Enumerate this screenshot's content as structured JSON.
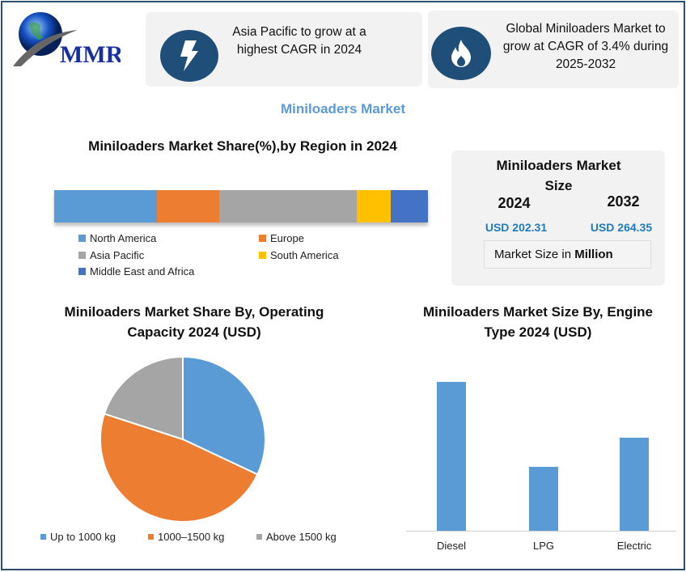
{
  "logo": {
    "text": "MMR"
  },
  "highlights": [
    {
      "icon": "lightning-icon",
      "text": "Asia Pacific to grow at a highest CAGR in 2024"
    },
    {
      "icon": "flame-icon",
      "text": "Global Miniloaders Market to grow at CAGR of 3.4% during 2025-2032"
    }
  ],
  "title": "Miniloaders Market",
  "size_box": {
    "title": "Miniloaders Market Size",
    "year1": "2024",
    "year2": "2032",
    "value1": "USD 202.31",
    "value2": "USD 264.35",
    "unit_prefix": "Market Size in ",
    "unit": "Million"
  },
  "colors": {
    "blue": "#5b9bd5",
    "orange": "#ed7d31",
    "gray": "#a5a5a5",
    "yellow": "#ffc000",
    "darkblue": "#4472c4",
    "accent": "#1f4e79",
    "title": "#5b9bd5"
  },
  "chart_data": [
    {
      "type": "bar",
      "orientation": "stacked-horizontal",
      "title": "Miniloaders Market Share(%),by Region in 2024",
      "categories": [
        "North America",
        "Europe",
        "Asia Pacific",
        "South America",
        "Middle East and Africa"
      ],
      "values": [
        27.5,
        16.7,
        36.8,
        9.1,
        9.9
      ],
      "legend": "bottom"
    },
    {
      "type": "pie",
      "title": "Miniloaders Market Share By, Operating Capacity 2024  (USD)",
      "categories": [
        "Up to 1000 kg",
        "1000–1500 kg",
        "Above 1500 kg"
      ],
      "values": [
        32,
        48,
        20
      ],
      "legend": "bottom"
    },
    {
      "type": "bar",
      "title": "Miniloaders Market Size By, Engine Type 2024  (USD)",
      "categories": [
        "Diesel",
        "LPG",
        "Electric"
      ],
      "values": [
        192,
        82,
        120
      ],
      "ylim": [
        0,
        200
      ]
    }
  ]
}
